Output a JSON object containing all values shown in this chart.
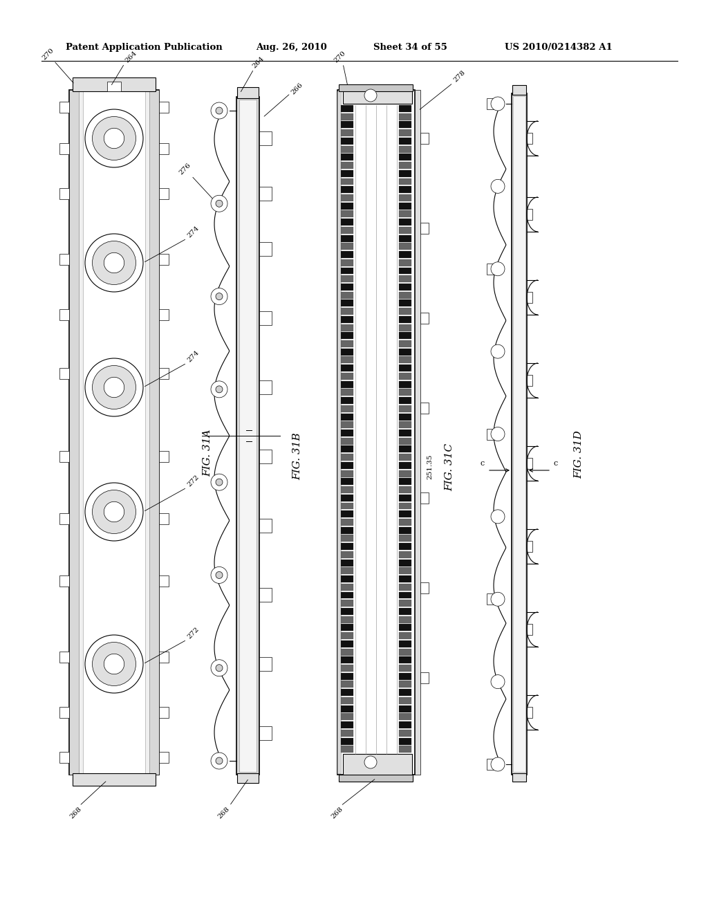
{
  "title": "Patent Application Publication",
  "date": "Aug. 26, 2010",
  "sheet": "Sheet 34 of 55",
  "patent": "US 2010/0214382 A1",
  "bg_color": "#ffffff",
  "line_color": "#000000",
  "fig_labels": [
    "FIG. 31A",
    "FIG. 31B",
    "FIG. 31C",
    "FIG. 31D"
  ],
  "gray_light": "#e8e8e8",
  "gray_med": "#c0c0c0",
  "gray_dark": "#888888"
}
